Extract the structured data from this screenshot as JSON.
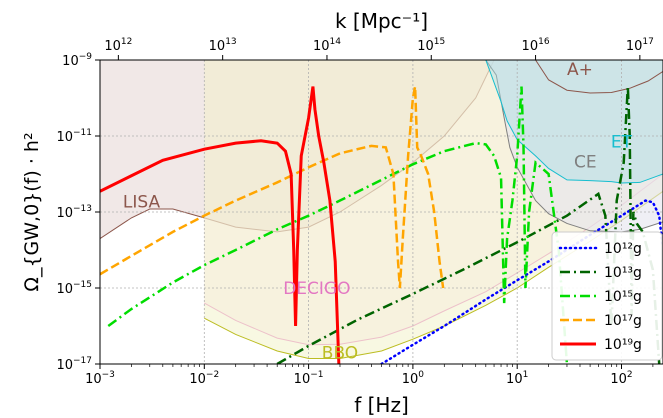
{
  "chart_data": {
    "type": "line",
    "xlabel": "f [Hz]",
    "ylabel": "Ω_{GW,0}(f) · h²",
    "top_xlabel": "k [Mpc⁻¹]",
    "x_scale": "log",
    "y_scale": "log",
    "xlim": [
      0.001,
      250
    ],
    "ylim": [
      1e-17,
      1e-09
    ],
    "x_ticks": [
      {
        "value": 0.001,
        "base": "10",
        "exp": "−3"
      },
      {
        "value": 0.01,
        "base": "10",
        "exp": "−2"
      },
      {
        "value": 0.1,
        "base": "10",
        "exp": "−1"
      },
      {
        "value": 1,
        "base": "10",
        "exp": "0"
      },
      {
        "value": 10,
        "base": "10",
        "exp": "1"
      },
      {
        "value": 100,
        "base": "10",
        "exp": "2"
      }
    ],
    "y_ticks": [
      {
        "value": 1e-17,
        "base": "10",
        "exp": "−17"
      },
      {
        "value": 1e-15,
        "base": "10",
        "exp": "−15"
      },
      {
        "value": 1e-13,
        "base": "10",
        "exp": "−13"
      },
      {
        "value": 1e-11,
        "base": "10",
        "exp": "−11"
      },
      {
        "value": 1e-09,
        "base": "10",
        "exp": "−9"
      }
    ],
    "top_ticks": [
      {
        "k": 1000000000000.0,
        "f": 0.0015,
        "base": "10",
        "exp": "12"
      },
      {
        "k": 10000000000000.0,
        "f": 0.015,
        "base": "10",
        "exp": "13"
      },
      {
        "k": 100000000000000.0,
        "f": 0.15,
        "base": "10",
        "exp": "14"
      },
      {
        "k": 1000000000000000.0,
        "f": 1.5,
        "base": "10",
        "exp": "15"
      },
      {
        "k": 1e+16,
        "f": 15,
        "base": "10",
        "exp": "16"
      },
      {
        "k": 1e+17,
        "f": 150,
        "base": "10",
        "exp": "17"
      }
    ],
    "grid": true,
    "legend_position": "lower-right",
    "detectors": [
      {
        "name": "LISA",
        "color": "#8c564b",
        "fill": "#c9a59f",
        "fill_opacity": 0.25,
        "curve": [
          [
            0.001,
            2e-14
          ],
          [
            0.002,
            7e-14
          ],
          [
            0.003,
            1.2e-13
          ],
          [
            0.005,
            1.2e-13
          ],
          [
            0.01,
            7e-14
          ],
          [
            0.02,
            4e-14
          ],
          [
            0.05,
            3e-14
          ],
          [
            0.1,
            4e-14
          ],
          [
            0.2,
            1e-13
          ],
          [
            0.5,
            5e-13
          ],
          [
            1,
            2e-12
          ],
          [
            2,
            1e-11
          ],
          [
            4,
            1e-10
          ],
          [
            6,
            1e-09
          ]
        ],
        "label_at": [
          0.0025,
          1.3e-13
        ]
      },
      {
        "name": "DECIGO",
        "color": "#e377c2",
        "fill": "#f2c6dd",
        "fill_opacity": 0.25,
        "curve": [
          [
            0.01,
            4e-16
          ],
          [
            0.02,
            1.4e-16
          ],
          [
            0.05,
            4.8e-17
          ],
          [
            0.1,
            3.2e-17
          ],
          [
            0.2,
            3.3e-17
          ],
          [
            0.5,
            5.1e-17
          ],
          [
            1,
            1e-16
          ],
          [
            2,
            2.5e-16
          ],
          [
            5,
            8e-16
          ],
          [
            10,
            2.5e-15
          ],
          [
            20,
            8e-15
          ],
          [
            50,
            4e-14
          ],
          [
            100,
            1.5e-13
          ],
          [
            250,
            1e-12
          ]
        ],
        "label_at": [
          0.12,
          7e-16
        ]
      },
      {
        "name": "BBO",
        "color": "#bcbd22",
        "fill": "#f4f4cf",
        "fill_opacity": 0.6,
        "curve": [
          [
            0.01,
            1.6e-16
          ],
          [
            0.02,
            6e-17
          ],
          [
            0.05,
            2.2e-17
          ],
          [
            0.1,
            1.4e-17
          ],
          [
            0.2,
            1.4e-17
          ],
          [
            0.5,
            2.2e-17
          ],
          [
            1,
            4.5e-17
          ],
          [
            2,
            1e-16
          ],
          [
            5,
            3.5e-16
          ],
          [
            10,
            1e-15
          ],
          [
            20,
            3.5e-15
          ],
          [
            50,
            1.7e-14
          ],
          [
            100,
            6e-14
          ],
          [
            250,
            3.5e-13
          ]
        ],
        "label_at": [
          0.2,
          1.4e-17
        ]
      },
      {
        "name": "CE",
        "color": "#7f7f7f",
        "fill": "#e4e4ee",
        "fill_opacity": 0.6,
        "curve": [
          [
            5,
            1e-09
          ],
          [
            6.3,
            4e-10
          ],
          [
            7.5,
            3e-11
          ],
          [
            8.5,
            5e-12
          ],
          [
            10,
            1.5e-12
          ],
          [
            15,
            2e-13
          ],
          [
            20,
            9e-14
          ],
          [
            30,
            5e-14
          ],
          [
            50,
            3.2e-14
          ],
          [
            100,
            3e-14
          ],
          [
            150,
            3.5e-14
          ],
          [
            250,
            5.5e-14
          ]
        ],
        "label_at": [
          45,
          1.5e-12
        ]
      },
      {
        "name": "ET",
        "color": "#17becf",
        "fill": "#a9dde6",
        "fill_opacity": 0.45,
        "curve": [
          [
            5,
            1e-09
          ],
          [
            7,
            8e-11
          ],
          [
            8,
            2.5e-11
          ],
          [
            10,
            8e-12
          ],
          [
            15,
            3e-12
          ],
          [
            20,
            1.4e-12
          ],
          [
            30,
            7e-13
          ],
          [
            50,
            6.7e-13
          ],
          [
            80,
            6.3e-13
          ],
          [
            100,
            5.8e-13
          ],
          [
            150,
            6e-13
          ],
          [
            200,
            8e-13
          ],
          [
            250,
            1e-12
          ]
        ],
        "label_at": [
          100,
          5e-12
        ]
      },
      {
        "name": "A+",
        "color": "#8c564b",
        "fill": "none",
        "fill_opacity": 0,
        "curve": [
          [
            15,
            1e-09
          ],
          [
            20,
            3e-10
          ],
          [
            30,
            1.6e-10
          ],
          [
            50,
            1.35e-10
          ],
          [
            80,
            1.4e-10
          ],
          [
            120,
            1.8e-10
          ],
          [
            180,
            2.8e-10
          ],
          [
            250,
            5e-10
          ]
        ],
        "label_at": [
          40,
          4e-10
        ]
      }
    ],
    "series": [
      {
        "name": "10¹²g",
        "color": "#0000ff",
        "style": "dotted",
        "width": 2.5,
        "points": [
          [
            0.5,
            1e-17
          ],
          [
            1,
            3.2e-17
          ],
          [
            2,
            1e-16
          ],
          [
            5,
            5e-16
          ],
          [
            10,
            1.6e-15
          ],
          [
            20,
            5e-15
          ],
          [
            50,
            2.5e-14
          ],
          [
            100,
            8e-14
          ],
          [
            150,
            1.6e-13
          ],
          [
            170,
            2e-13
          ],
          [
            200,
            1.8e-13
          ],
          [
            230,
            8e-14
          ],
          [
            250,
            1e-14
          ]
        ]
      },
      {
        "name": "10¹³g",
        "color": "#006400",
        "style": "dashdot",
        "width": 2.5,
        "points": [
          [
            0.05,
            1e-17
          ],
          [
            0.1,
            3e-17
          ],
          [
            0.3,
            1.5e-16
          ],
          [
            1,
            7e-16
          ],
          [
            3,
            3e-15
          ],
          [
            10,
            1.6e-14
          ],
          [
            30,
            8e-14
          ],
          [
            60,
            3e-13
          ],
          [
            70,
            8e-14
          ],
          [
            80,
            1e-16
          ],
          [
            90,
            2e-13
          ],
          [
            105,
            2e-12
          ],
          [
            115,
            2e-10
          ],
          [
            120,
            1e-11
          ],
          [
            125,
            2e-16
          ],
          [
            130,
            1e-13
          ],
          [
            140,
            5e-14
          ],
          [
            160,
            3e-14
          ],
          [
            200,
            3e-15
          ],
          [
            230,
            1e-17
          ]
        ]
      },
      {
        "name": "10¹⁵g",
        "color": "#00dd00",
        "style": "dashdot",
        "width": 2.5,
        "points": [
          [
            0.0012,
            1e-16
          ],
          [
            0.002,
            2.8e-16
          ],
          [
            0.005,
            1.4e-15
          ],
          [
            0.01,
            4e-15
          ],
          [
            0.02,
            1e-14
          ],
          [
            0.05,
            3.5e-14
          ],
          [
            0.1,
            8e-14
          ],
          [
            0.2,
            2e-13
          ],
          [
            0.5,
            7e-13
          ],
          [
            1,
            1.8e-12
          ],
          [
            2,
            4e-12
          ],
          [
            4,
            6.5e-12
          ],
          [
            5,
            6e-12
          ],
          [
            6,
            3e-12
          ],
          [
            7,
            8e-13
          ],
          [
            7.5,
            4e-16
          ],
          [
            8,
            2e-14
          ],
          [
            9,
            2e-13
          ],
          [
            10,
            3e-12
          ],
          [
            11,
            2e-10
          ],
          [
            11.5,
            5e-12
          ],
          [
            12,
            1e-15
          ],
          [
            13,
            1e-13
          ],
          [
            15,
            2e-12
          ],
          [
            20,
            1e-12
          ],
          [
            25,
            1e-14
          ],
          [
            30,
            1e-17
          ]
        ]
      },
      {
        "name": "10¹⁷g",
        "color": "#ffa500",
        "style": "dashed",
        "width": 2.5,
        "points": [
          [
            0.001,
            2.3e-15
          ],
          [
            0.002,
            7e-15
          ],
          [
            0.005,
            3e-14
          ],
          [
            0.01,
            8e-14
          ],
          [
            0.02,
            2e-13
          ],
          [
            0.05,
            6e-13
          ],
          [
            0.1,
            1.5e-12
          ],
          [
            0.2,
            3.5e-12
          ],
          [
            0.4,
            5.5e-12
          ],
          [
            0.55,
            5e-12
          ],
          [
            0.65,
            1e-12
          ],
          [
            0.72,
            5e-15
          ],
          [
            0.75,
            1e-15
          ],
          [
            0.8,
            2e-14
          ],
          [
            0.9,
            3e-12
          ],
          [
            1,
            1e-10
          ],
          [
            1.05,
            2e-10
          ],
          [
            1.1,
            5e-12
          ],
          [
            1.2,
            3e-12
          ],
          [
            1.4,
            1e-12
          ],
          [
            1.6,
            1e-13
          ],
          [
            1.8,
            5e-15
          ],
          [
            1.95,
            1e-15
          ]
        ]
      },
      {
        "name": "10¹⁹g",
        "color": "#ff0000",
        "style": "solid",
        "width": 3,
        "points": [
          [
            0.001,
            3.5e-13
          ],
          [
            0.002,
            9e-13
          ],
          [
            0.004,
            2.3e-12
          ],
          [
            0.01,
            4.5e-12
          ],
          [
            0.02,
            6.5e-12
          ],
          [
            0.035,
            7.5e-12
          ],
          [
            0.05,
            6.5e-12
          ],
          [
            0.06,
            4e-12
          ],
          [
            0.068,
            1e-12
          ],
          [
            0.072,
            1e-14
          ],
          [
            0.075,
            1e-16
          ],
          [
            0.078,
            1e-14
          ],
          [
            0.085,
            3e-12
          ],
          [
            0.1,
            3e-11
          ],
          [
            0.11,
            2e-10
          ],
          [
            0.115,
            5e-11
          ],
          [
            0.125,
            1e-11
          ],
          [
            0.14,
            2e-12
          ],
          [
            0.16,
            2e-13
          ],
          [
            0.18,
            5e-15
          ],
          [
            0.195,
            1e-17
          ]
        ]
      }
    ]
  }
}
